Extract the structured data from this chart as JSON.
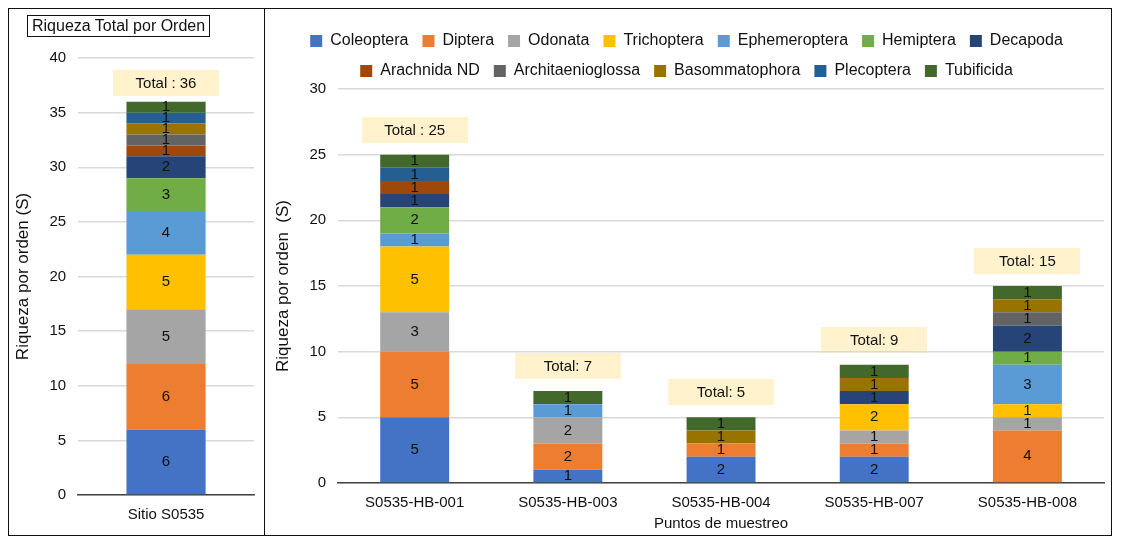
{
  "chart_data": [
    {
      "type": "bar",
      "title": "Riqueza Total por Orden",
      "ylabel": "Riqueza por orden (S)",
      "categories": [
        "Sitio S0535"
      ],
      "stacked": true,
      "data_labels": true,
      "grid": "y",
      "legend": false,
      "ylim": [
        0,
        40
      ],
      "yticks": [
        0,
        5,
        10,
        15,
        20,
        25,
        30,
        35,
        40
      ],
      "totals": [
        "Total : 36"
      ],
      "series": [
        {
          "color": "#4472c4",
          "values": [
            6
          ]
        },
        {
          "color": "#ed7d31",
          "values": [
            6
          ]
        },
        {
          "color": "#a5a5a5",
          "values": [
            5
          ]
        },
        {
          "color": "#ffc000",
          "values": [
            5
          ]
        },
        {
          "color": "#5b9bd5",
          "values": [
            4
          ]
        },
        {
          "color": "#70ad47",
          "values": [
            3
          ]
        },
        {
          "color": "#264478",
          "values": [
            2
          ]
        },
        {
          "color": "#9e480e",
          "values": [
            1
          ]
        },
        {
          "color": "#636363",
          "values": [
            1
          ]
        },
        {
          "color": "#997300",
          "values": [
            1
          ]
        },
        {
          "color": "#255e91",
          "values": [
            1
          ]
        },
        {
          "color": "#43682b",
          "values": [
            1
          ]
        }
      ]
    },
    {
      "type": "bar",
      "ylabel": "Riqueza por orden  (S)",
      "xlabel": "Puntos de muestreo",
      "categories": [
        "S0535-HB-001",
        "S0535-HB-003",
        "S0535-HB-004",
        "S0535-HB-007",
        "S0535-HB-008"
      ],
      "stacked": true,
      "data_labels": true,
      "grid": "y",
      "legend": "top",
      "ylim": [
        0,
        30
      ],
      "yticks": [
        0,
        5,
        10,
        15,
        20,
        25,
        30
      ],
      "totals": [
        "Total : 25",
        "Total: 7",
        "Total: 5",
        "Total: 9",
        "Total: 15"
      ],
      "series": [
        {
          "name": "Coleoptera",
          "color": "#4472c4",
          "values": [
            5,
            1,
            2,
            2,
            null
          ]
        },
        {
          "name": "Diptera",
          "color": "#ed7d31",
          "values": [
            5,
            2,
            1,
            1,
            4
          ]
        },
        {
          "name": "Odonata",
          "color": "#a5a5a5",
          "values": [
            3,
            2,
            null,
            1,
            1
          ]
        },
        {
          "name": "Trichoptera",
          "color": "#ffc000",
          "values": [
            5,
            null,
            null,
            2,
            1
          ]
        },
        {
          "name": "Ephemeroptera",
          "color": "#5b9bd5",
          "values": [
            1,
            1,
            null,
            null,
            3
          ]
        },
        {
          "name": "Hemiptera",
          "color": "#70ad47",
          "values": [
            2,
            null,
            null,
            null,
            1
          ]
        },
        {
          "name": "Decapoda",
          "color": "#264478",
          "values": [
            1,
            null,
            null,
            1,
            2
          ]
        },
        {
          "name": "Arachnida ND",
          "color": "#9e480e",
          "values": [
            1,
            null,
            null,
            null,
            null
          ]
        },
        {
          "name": "Architaenioglossa",
          "color": "#636363",
          "values": [
            null,
            null,
            null,
            null,
            1
          ]
        },
        {
          "name": "Basommatophora",
          "color": "#997300",
          "values": [
            null,
            null,
            1,
            1,
            1
          ]
        },
        {
          "name": "Plecoptera",
          "color": "#255e91",
          "values": [
            1,
            null,
            null,
            null,
            null
          ]
        },
        {
          "name": "Tubificida",
          "color": "#43682b",
          "values": [
            1,
            1,
            1,
            1,
            1
          ]
        }
      ]
    }
  ]
}
